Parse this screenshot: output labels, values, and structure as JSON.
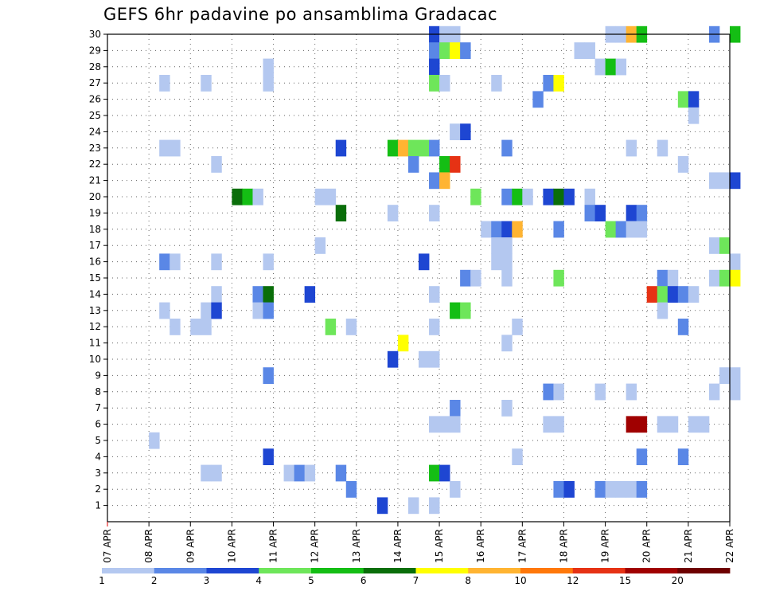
{
  "chart_data": {
    "type": "heatmap",
    "title": "GEFS 6hr padavine po ansamblima Gradacac",
    "xlabel": "",
    "ylabel": "",
    "x_tick_labels": [
      "07 APR",
      "08 APR",
      "09 APR",
      "10 APR",
      "11 APR",
      "12 APR",
      "13 APR",
      "14 APR",
      "15 APR",
      "16 APR",
      "17 APR",
      "18 APR",
      "19 APR",
      "20 APR",
      "21 APR",
      "22 APR"
    ],
    "y_tick_labels": [
      "1",
      "2",
      "3",
      "4",
      "5",
      "6",
      "7",
      "8",
      "9",
      "10",
      "11",
      "12",
      "13",
      "14",
      "15",
      "16",
      "17",
      "18",
      "19",
      "20",
      "21",
      "22",
      "23",
      "24",
      "25",
      "26",
      "27",
      "28",
      "29",
      "30"
    ],
    "steps_per_day": 4,
    "members": 30,
    "grid": true,
    "legend_placement": "bottom",
    "legend": {
      "thresholds": [
        "1",
        "2",
        "3",
        "4",
        "5",
        "6",
        "7",
        "8",
        "10",
        "12",
        "15",
        "20"
      ],
      "colors": [
        "#b4c8f0",
        "#5a87e6",
        "#1e46d2",
        "#6ee65a",
        "#14be14",
        "#0a6e0a",
        "#ffff00",
        "#ffb432",
        "#ff780a",
        "#e63214",
        "#a00000",
        "#6e0000"
      ]
    },
    "cells": [
      [
        30,
        31,
        2
      ],
      [
        30,
        32,
        0
      ],
      [
        30,
        33,
        0
      ],
      [
        30,
        48,
        0
      ],
      [
        30,
        49,
        0
      ],
      [
        30,
        50,
        7
      ],
      [
        30,
        51,
        4
      ],
      [
        30,
        58,
        1
      ],
      [
        30,
        60,
        4
      ],
      [
        29,
        31,
        1
      ],
      [
        29,
        32,
        3
      ],
      [
        29,
        33,
        6
      ],
      [
        29,
        34,
        1
      ],
      [
        29,
        45,
        0
      ],
      [
        29,
        46,
        0
      ],
      [
        28,
        15,
        0
      ],
      [
        28,
        31,
        2
      ],
      [
        28,
        47,
        0
      ],
      [
        28,
        48,
        4
      ],
      [
        28,
        49,
        0
      ],
      [
        27,
        5,
        0
      ],
      [
        27,
        9,
        0
      ],
      [
        27,
        15,
        0
      ],
      [
        27,
        31,
        3
      ],
      [
        27,
        32,
        0
      ],
      [
        27,
        37,
        0
      ],
      [
        27,
        42,
        1
      ],
      [
        27,
        43,
        6
      ],
      [
        26,
        41,
        1
      ],
      [
        26,
        55,
        3
      ],
      [
        26,
        56,
        2
      ],
      [
        25,
        56,
        0
      ],
      [
        24,
        33,
        0
      ],
      [
        24,
        34,
        2
      ],
      [
        23,
        5,
        0
      ],
      [
        23,
        6,
        0
      ],
      [
        23,
        22,
        2
      ],
      [
        23,
        27,
        4
      ],
      [
        23,
        28,
        7
      ],
      [
        23,
        29,
        3
      ],
      [
        23,
        30,
        3
      ],
      [
        23,
        31,
        1
      ],
      [
        23,
        38,
        1
      ],
      [
        23,
        50,
        0
      ],
      [
        23,
        53,
        0
      ],
      [
        22,
        10,
        0
      ],
      [
        22,
        29,
        1
      ],
      [
        22,
        32,
        4
      ],
      [
        22,
        33,
        9
      ],
      [
        22,
        55,
        0
      ],
      [
        21,
        31,
        1
      ],
      [
        21,
        32,
        7
      ],
      [
        21,
        58,
        0
      ],
      [
        21,
        59,
        0
      ],
      [
        21,
        60,
        2
      ],
      [
        20,
        12,
        5
      ],
      [
        20,
        13,
        4
      ],
      [
        20,
        14,
        0
      ],
      [
        20,
        20,
        0
      ],
      [
        20,
        21,
        0
      ],
      [
        20,
        35,
        3
      ],
      [
        20,
        38,
        1
      ],
      [
        20,
        39,
        4
      ],
      [
        20,
        40,
        0
      ],
      [
        20,
        42,
        2
      ],
      [
        20,
        43,
        5
      ],
      [
        20,
        44,
        2
      ],
      [
        20,
        46,
        0
      ],
      [
        19,
        22,
        5
      ],
      [
        19,
        27,
        0
      ],
      [
        19,
        31,
        0
      ],
      [
        19,
        46,
        1
      ],
      [
        19,
        47,
        2
      ],
      [
        19,
        50,
        2
      ],
      [
        19,
        51,
        1
      ],
      [
        18,
        36,
        0
      ],
      [
        18,
        37,
        1
      ],
      [
        18,
        38,
        2
      ],
      [
        18,
        39,
        7
      ],
      [
        18,
        43,
        1
      ],
      [
        18,
        48,
        3
      ],
      [
        18,
        49,
        1
      ],
      [
        18,
        50,
        0
      ],
      [
        18,
        51,
        0
      ],
      [
        17,
        20,
        0
      ],
      [
        17,
        37,
        0
      ],
      [
        17,
        38,
        0
      ],
      [
        17,
        58,
        0
      ],
      [
        17,
        59,
        3
      ],
      [
        16,
        5,
        1
      ],
      [
        16,
        6,
        0
      ],
      [
        16,
        10,
        0
      ],
      [
        16,
        15,
        0
      ],
      [
        16,
        30,
        2
      ],
      [
        16,
        37,
        0
      ],
      [
        16,
        38,
        0
      ],
      [
        16,
        60,
        0
      ],
      [
        15,
        34,
        1
      ],
      [
        15,
        35,
        0
      ],
      [
        15,
        38,
        0
      ],
      [
        15,
        43,
        3
      ],
      [
        15,
        53,
        1
      ],
      [
        15,
        54,
        0
      ],
      [
        15,
        58,
        0
      ],
      [
        15,
        59,
        3
      ],
      [
        15,
        60,
        6
      ],
      [
        14,
        10,
        0
      ],
      [
        14,
        14,
        1
      ],
      [
        14,
        15,
        5
      ],
      [
        14,
        19,
        2
      ],
      [
        14,
        31,
        0
      ],
      [
        14,
        52,
        9
      ],
      [
        14,
        53,
        3
      ],
      [
        14,
        54,
        2
      ],
      [
        14,
        55,
        1
      ],
      [
        14,
        56,
        0
      ],
      [
        13,
        5,
        0
      ],
      [
        13,
        9,
        0
      ],
      [
        13,
        10,
        2
      ],
      [
        13,
        14,
        0
      ],
      [
        13,
        15,
        1
      ],
      [
        13,
        33,
        4
      ],
      [
        13,
        34,
        3
      ],
      [
        13,
        53,
        0
      ],
      [
        12,
        6,
        0
      ],
      [
        12,
        8,
        0
      ],
      [
        12,
        9,
        0
      ],
      [
        12,
        21,
        3
      ],
      [
        12,
        23,
        0
      ],
      [
        12,
        31,
        0
      ],
      [
        12,
        39,
        0
      ],
      [
        12,
        55,
        1
      ],
      [
        11,
        28,
        6
      ],
      [
        11,
        38,
        0
      ],
      [
        10,
        27,
        2
      ],
      [
        10,
        30,
        0
      ],
      [
        10,
        31,
        0
      ],
      [
        9,
        15,
        1
      ],
      [
        9,
        59,
        0
      ],
      [
        9,
        60,
        0
      ],
      [
        8,
        42,
        1
      ],
      [
        8,
        43,
        0
      ],
      [
        8,
        47,
        0
      ],
      [
        8,
        50,
        0
      ],
      [
        8,
        58,
        0
      ],
      [
        8,
        60,
        0
      ],
      [
        7,
        33,
        1
      ],
      [
        7,
        38,
        0
      ],
      [
        6,
        31,
        0
      ],
      [
        6,
        32,
        0
      ],
      [
        6,
        33,
        0
      ],
      [
        6,
        42,
        0
      ],
      [
        6,
        43,
        0
      ],
      [
        6,
        50,
        10
      ],
      [
        6,
        51,
        10
      ],
      [
        6,
        53,
        0
      ],
      [
        6,
        54,
        0
      ],
      [
        6,
        56,
        0
      ],
      [
        6,
        57,
        0
      ],
      [
        5,
        4,
        0
      ],
      [
        4,
        15,
        2
      ],
      [
        4,
        39,
        0
      ],
      [
        4,
        51,
        1
      ],
      [
        4,
        55,
        1
      ],
      [
        3,
        9,
        0
      ],
      [
        3,
        10,
        0
      ],
      [
        3,
        17,
        0
      ],
      [
        3,
        18,
        1
      ],
      [
        3,
        19,
        0
      ],
      [
        3,
        22,
        1
      ],
      [
        3,
        31,
        4
      ],
      [
        3,
        32,
        2
      ],
      [
        2,
        23,
        1
      ],
      [
        2,
        33,
        0
      ],
      [
        2,
        43,
        1
      ],
      [
        2,
        44,
        2
      ],
      [
        2,
        47,
        1
      ],
      [
        2,
        48,
        0
      ],
      [
        2,
        49,
        0
      ],
      [
        2,
        50,
        0
      ],
      [
        2,
        51,
        1
      ],
      [
        1,
        26,
        2
      ],
      [
        1,
        29,
        0
      ],
      [
        1,
        31,
        0
      ]
    ]
  }
}
